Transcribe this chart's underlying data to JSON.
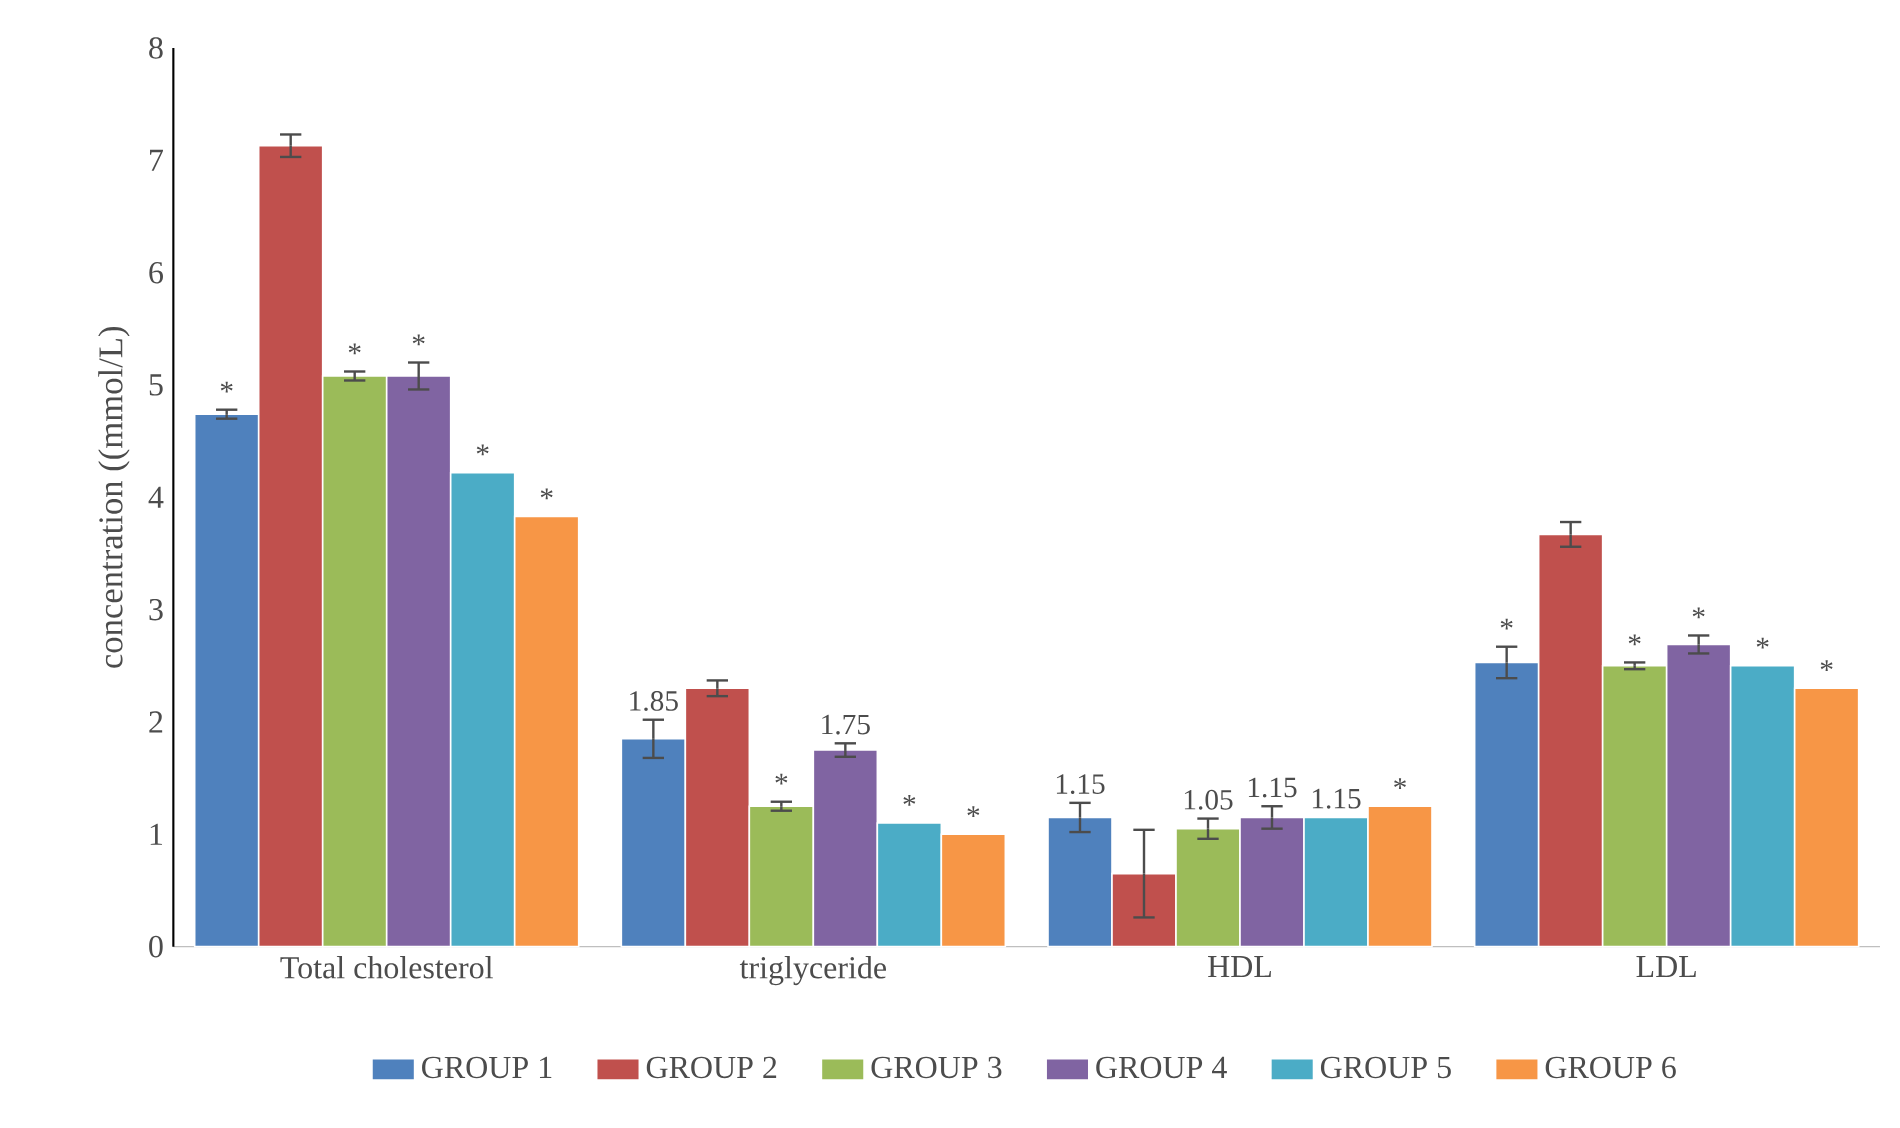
{
  "chart_data": {
    "type": "bar",
    "ylabel": "concentration ((mmol/L)",
    "categories": [
      "Total cholesterol",
      "triglyceride",
      "HDL",
      "LDL"
    ],
    "ylim": [
      0,
      8
    ],
    "yticks": [
      0,
      1,
      2,
      3,
      4,
      5,
      6,
      7,
      8
    ],
    "grid": false,
    "legend": "bottom",
    "series": [
      {
        "name": "GROUP 1",
        "color": "#4f81bd",
        "values": [
          4.74,
          1.85,
          1.15,
          2.53
        ],
        "errors": [
          0.04,
          0.17,
          0.13,
          0.14
        ],
        "value_labels": [
          "*",
          "1.85",
          "1.15",
          "*"
        ]
      },
      {
        "name": "GROUP 2",
        "color": "#c0504d",
        "values": [
          7.13,
          2.3,
          0.65,
          3.67
        ],
        "errors": [
          0.1,
          0.07,
          0.39,
          0.11
        ],
        "value_labels": [
          null,
          null,
          null,
          null
        ]
      },
      {
        "name": "GROUP 3",
        "color": "#9bbb59",
        "values": [
          5.08,
          1.25,
          1.05,
          2.5
        ],
        "errors": [
          0.04,
          0.04,
          0.09,
          0.03
        ],
        "value_labels": [
          "*",
          "*",
          "1.05",
          "*"
        ]
      },
      {
        "name": "GROUP 4",
        "color": "#8064a2",
        "values": [
          5.08,
          1.75,
          1.15,
          2.69
        ],
        "errors": [
          0.12,
          0.06,
          0.1,
          0.08
        ],
        "value_labels": [
          "*",
          "1.75",
          "1.15",
          "*"
        ]
      },
      {
        "name": "GROUP 5",
        "color": "#4bacc6",
        "values": [
          4.22,
          1.1,
          1.15,
          2.5
        ],
        "errors": [
          null,
          null,
          null,
          null
        ],
        "value_labels": [
          "*",
          "*",
          "1.15",
          "*"
        ]
      },
      {
        "name": "GROUP 6",
        "color": "#f79646",
        "values": [
          3.83,
          1.0,
          1.25,
          2.3
        ],
        "errors": [
          null,
          null,
          null,
          null
        ],
        "value_labels": [
          "*",
          "*",
          "*",
          "*"
        ]
      }
    ]
  }
}
